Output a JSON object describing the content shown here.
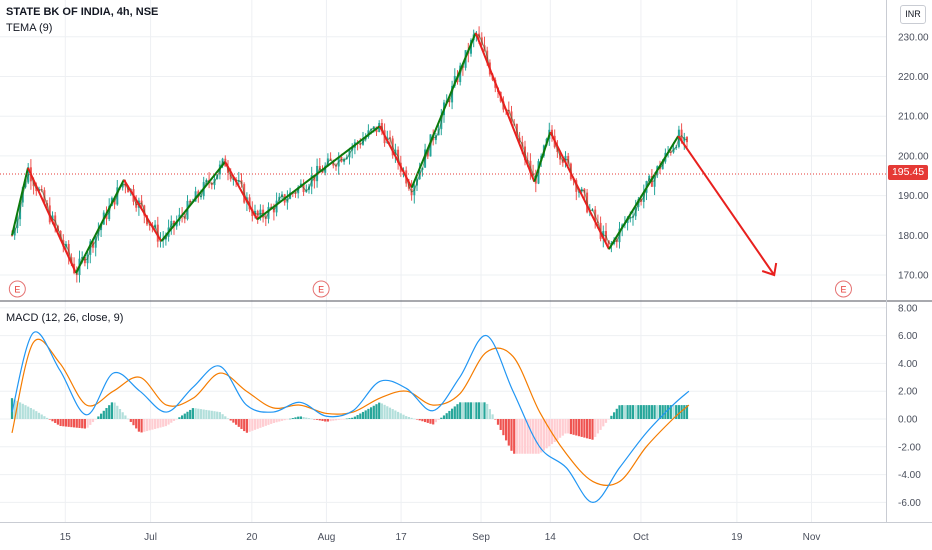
{
  "header": {
    "title": "STATE BK OF INDIA, 4h, NSE",
    "indicator": "TEMA (9)",
    "macd_label": "MACD (12, 26, close, 9)",
    "currency": "INR"
  },
  "price": {
    "last": "195.45",
    "last_value": 195.45,
    "colors": {
      "up": "#26a69a",
      "down": "#ef5350",
      "last_line": "#e53935"
    }
  },
  "events": [
    "E",
    "E",
    "E"
  ],
  "chart_data": [
    {
      "type": "candlestick",
      "title": "STATE BK OF INDIA, 4h, NSE",
      "ylim": [
        165,
        235
      ],
      "y_ticks": [
        "230.00",
        "220.00",
        "210.00",
        "200.00",
        "190.00",
        "180.00",
        "170.00"
      ],
      "y_tick_values": [
        230,
        220,
        210,
        200,
        190,
        180,
        170
      ],
      "x_ticks": [
        "15",
        "Jul",
        "20",
        "Aug",
        "17",
        "Sep",
        "14",
        "Oct",
        "19",
        "Nov"
      ],
      "grid": true,
      "swing_points": [
        {
          "date": "Jun 5",
          "price": 180.0
        },
        {
          "date": "Jun 8",
          "price": 197.0
        },
        {
          "date": "Jun 17",
          "price": 170.5
        },
        {
          "date": "Jun 26",
          "price": 194.0
        },
        {
          "date": "Jul 3",
          "price": 178.5
        },
        {
          "date": "Jul 15",
          "price": 198.5
        },
        {
          "date": "Jul 21",
          "price": 184.0
        },
        {
          "date": "Aug 13",
          "price": 207.5
        },
        {
          "date": "Aug 19",
          "price": 192.0
        },
        {
          "date": "Aug 31",
          "price": 231.0
        },
        {
          "date": "Sep 11",
          "price": 193.5
        },
        {
          "date": "Sep 14",
          "price": 206.0
        },
        {
          "date": "Sep 25",
          "price": 176.5
        },
        {
          "date": "Oct 8",
          "price": 205.0
        },
        {
          "date": "Oct 26",
          "price": 170.0
        }
      ],
      "segment_colors": [
        "#0b7a0b",
        "#e8201e"
      ],
      "last_price": 195.45
    },
    {
      "type": "line",
      "title": "MACD (12, 26, close, 9)",
      "ylim": [
        -7,
        8
      ],
      "y_ticks": [
        "8.00",
        "6.00",
        "4.00",
        "2.00",
        "0.00",
        "-2.00",
        "-4.00",
        "-6.00"
      ],
      "y_tick_values": [
        8,
        6,
        4,
        2,
        0,
        -2,
        -4,
        -6
      ],
      "x": [
        "Jun 5",
        "Jun 9",
        "Jun 14",
        "Jun 19",
        "Jun 24",
        "Jun 29",
        "Jul 4",
        "Jul 9",
        "Jul 14",
        "Jul 19",
        "Jul 24",
        "Jul 29",
        "Aug 3",
        "Aug 8",
        "Aug 13",
        "Aug 18",
        "Aug 23",
        "Aug 28",
        "Sep 2",
        "Sep 7",
        "Sep 12",
        "Sep 17",
        "Sep 22",
        "Sep 27",
        "Oct 2",
        "Oct 7",
        "Oct 10"
      ],
      "series": [
        {
          "values": [
            0.5,
            6.2,
            3.5,
            0.3,
            3.3,
            2.0,
            0.5,
            2.3,
            3.8,
            1.0,
            0.5,
            1.2,
            0.2,
            0.6,
            2.7,
            2.2,
            0.6,
            3.0,
            6.0,
            2.0,
            -2.0,
            -3.5,
            -6.0,
            -3.5,
            -1.0,
            1.0,
            2.0
          ],
          "color": "#2196f3"
        },
        {
          "values": [
            -1.0,
            5.5,
            4.0,
            1.0,
            2.0,
            3.0,
            1.0,
            1.5,
            3.3,
            2.0,
            0.8,
            1.0,
            0.4,
            0.5,
            1.5,
            2.0,
            1.0,
            1.8,
            4.8,
            4.5,
            0.5,
            -2.5,
            -4.5,
            -4.5,
            -2.0,
            0.0,
            1.0
          ],
          "color": "#f57c00"
        },
        {
          "values": [
            1.5,
            0.7,
            -0.5,
            -0.7,
            1.3,
            -1.0,
            -0.5,
            0.8,
            0.5,
            -1.0,
            -0.3,
            0.2,
            -0.2,
            0.1,
            1.2,
            0.2,
            -0.4,
            1.2,
            1.2,
            -2.5,
            -2.5,
            -1.0,
            -1.5,
            1.0,
            1.0,
            1.0,
            1.0
          ],
          "color": "#26a69a",
          "kind": "histogram"
        }
      ]
    }
  ]
}
